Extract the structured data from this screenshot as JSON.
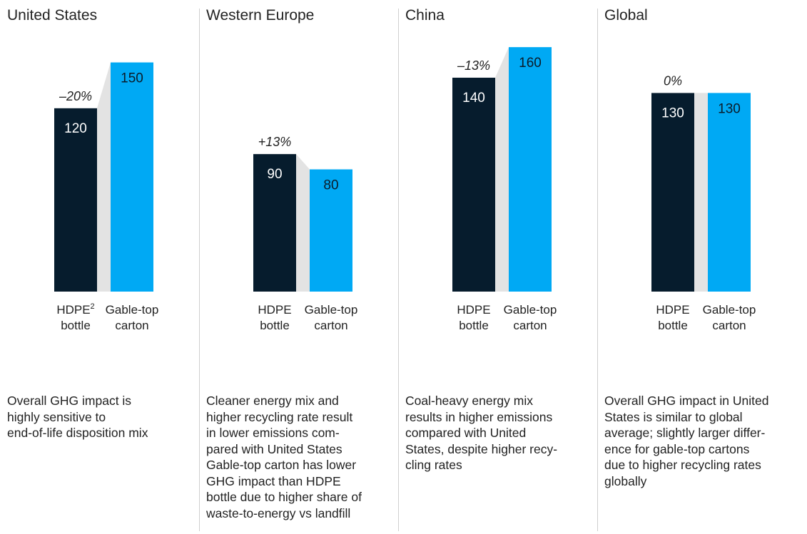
{
  "colors": {
    "hdpe": "#061c2d",
    "carton": "#00a9f4",
    "connector": "#e3e3e3",
    "divider": "#cfcfcf",
    "value_text_dark_bar": "#ffffff",
    "value_text_light_bar": "#0b1c2a"
  },
  "chart_data": [
    {
      "type": "bar",
      "title": "United States",
      "categories": [
        "HDPE² bottle",
        "Gable-top carton"
      ],
      "values": [
        120,
        150
      ],
      "value_labels": [
        "120",
        "150"
      ],
      "difference_label": "–20%",
      "category_lines": [
        [
          "HDPE²",
          "bottle"
        ],
        [
          "Gable-top",
          "carton"
        ]
      ],
      "note_lines": [
        "Overall GHG impact is",
        "highly sensitive to",
        "end-of-life disposition mix"
      ]
    },
    {
      "type": "bar",
      "title": "Western Europe",
      "categories": [
        "HDPE bottle",
        "Gable-top carton"
      ],
      "values": [
        90,
        80
      ],
      "value_labels": [
        "90",
        "80"
      ],
      "difference_label": "+13%",
      "category_lines": [
        [
          "HDPE",
          "bottle"
        ],
        [
          "Gable-top",
          "carton"
        ]
      ],
      "note_lines": [
        "Cleaner energy mix and",
        "higher recycling rate result",
        "in lower emissions com-",
        "pared with United States",
        "Gable-top carton has lower",
        "GHG impact than HDPE",
        "bottle due to higher share of",
        "waste-to-energy vs landfill"
      ]
    },
    {
      "type": "bar",
      "title": "China",
      "categories": [
        "HDPE bottle",
        "Gable-top carton"
      ],
      "values": [
        140,
        160
      ],
      "value_labels": [
        "140",
        "160"
      ],
      "difference_label": "–13%",
      "category_lines": [
        [
          "HDPE",
          "bottle"
        ],
        [
          "Gable-top",
          "carton"
        ]
      ],
      "note_lines": [
        "Coal-heavy energy mix",
        "results in higher emissions",
        "compared with United",
        "States, despite higher recy-",
        "cling rates"
      ]
    },
    {
      "type": "bar",
      "title": "Global",
      "categories": [
        "HDPE bottle",
        "Gable-top carton"
      ],
      "values": [
        130,
        130
      ],
      "value_labels": [
        "130",
        "130"
      ],
      "difference_label": "0%",
      "category_lines": [
        [
          "HDPE",
          "bottle"
        ],
        [
          "Gable-top",
          "carton"
        ]
      ],
      "note_lines": [
        "Overall GHG impact in United",
        "States is similar to global",
        "average; slightly larger differ-",
        "ence for gable-top cartons",
        "due to higher recycling rates",
        "globally"
      ]
    }
  ]
}
